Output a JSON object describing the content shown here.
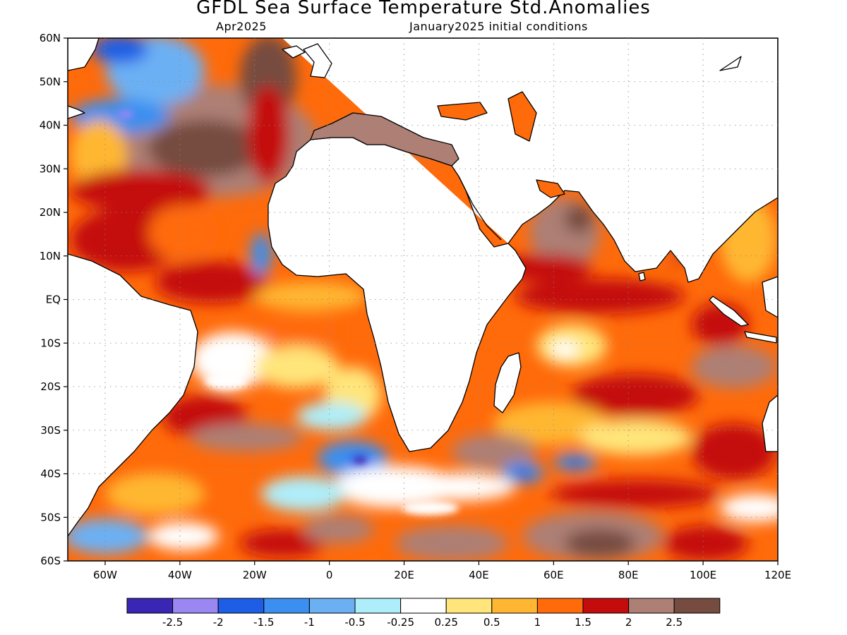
{
  "title": "GFDL Sea Surface Temperature Std.Anomalies",
  "subtitle_left": "Apr2025",
  "subtitle_right": "January2025 initial conditions",
  "map": {
    "lon_range": [
      -70,
      120
    ],
    "lat_range": [
      -60,
      60
    ],
    "lat_ticks": [
      {
        "value": 60,
        "label": "60N"
      },
      {
        "value": 50,
        "label": "50N"
      },
      {
        "value": 40,
        "label": "40N"
      },
      {
        "value": 30,
        "label": "30N"
      },
      {
        "value": 20,
        "label": "20N"
      },
      {
        "value": 10,
        "label": "10N"
      },
      {
        "value": 0,
        "label": "EQ"
      },
      {
        "value": -10,
        "label": "10S"
      },
      {
        "value": -20,
        "label": "20S"
      },
      {
        "value": -30,
        "label": "30S"
      },
      {
        "value": -40,
        "label": "40S"
      },
      {
        "value": -50,
        "label": "50S"
      },
      {
        "value": -60,
        "label": "60S"
      }
    ],
    "lon_ticks": [
      {
        "value": -60,
        "label": "60W"
      },
      {
        "value": -40,
        "label": "40W"
      },
      {
        "value": -20,
        "label": "20W"
      },
      {
        "value": 0,
        "label": "0"
      },
      {
        "value": 20,
        "label": "20E"
      },
      {
        "value": 40,
        "label": "40E"
      },
      {
        "value": 60,
        "label": "60E"
      },
      {
        "value": 80,
        "label": "80E"
      },
      {
        "value": 100,
        "label": "100E"
      },
      {
        "value": 120,
        "label": "120E"
      }
    ],
    "grid": true
  },
  "colorbar": {
    "colors": [
      "#3a26b5",
      "#9a87f2",
      "#1e5ee6",
      "#3a8ff0",
      "#6cb0f4",
      "#aeeefa",
      "#ffffff",
      "#ffe57a",
      "#ffb733",
      "#ff6a0a",
      "#c40c0c",
      "#ad7f75",
      "#764b40"
    ],
    "labels": [
      "-2.5",
      "-2",
      "-1.5",
      "-1",
      "-0.5",
      "-0.25",
      "0.25",
      "0.5",
      "1",
      "1.5",
      "2",
      "2.5"
    ]
  },
  "colors": {
    "land": "#ffffff",
    "coast": "#000000"
  }
}
